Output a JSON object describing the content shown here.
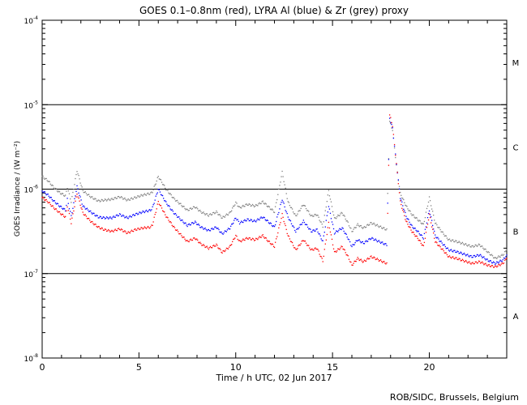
{
  "chart_data": {
    "type": "scatter",
    "title": "GOES 0.1–0.8nm (red), LYRA Al (blue) & Zr (grey) proxy",
    "xlabel": "Time / h UTC, 02 Jun 2017",
    "ylabel": "GOES Irradiance / (W m⁻²)",
    "xlim": [
      0,
      24
    ],
    "ylim_log10": [
      -8,
      -4
    ],
    "y_scale": "log",
    "x_ticks": [
      0,
      5,
      10,
      15,
      20
    ],
    "x_tick_labels": [
      "0",
      "5",
      "10",
      "15",
      "20"
    ],
    "y_tick_labels": [
      {
        "base": "10",
        "exp": "-8",
        "log10": -8
      },
      {
        "base": "10",
        "exp": "-7",
        "log10": -7
      },
      {
        "base": "10",
        "exp": "-6",
        "log10": -6
      },
      {
        "base": "10",
        "exp": "-5",
        "log10": -5
      },
      {
        "base": "10",
        "exp": "-4",
        "log10": -4
      }
    ],
    "class_lines_log10": [
      -7,
      -6,
      -5
    ],
    "class_labels": [
      {
        "label": "A",
        "log10": -7.5
      },
      {
        "label": "B",
        "log10": -6.5
      },
      {
        "label": "C",
        "log10": -5.5
      },
      {
        "label": "M",
        "log10": -4.5
      }
    ],
    "series": [
      {
        "name": "GOES 0.1-0.8nm",
        "color": "#ff0000",
        "points": [
          [
            0.0,
            -6.1
          ],
          [
            0.3,
            -6.15
          ],
          [
            0.6,
            -6.22
          ],
          [
            0.9,
            -6.28
          ],
          [
            1.2,
            -6.33
          ],
          [
            1.3,
            -6.2
          ],
          [
            1.5,
            -6.4
          ],
          [
            1.8,
            -6.05
          ],
          [
            2.1,
            -6.28
          ],
          [
            2.5,
            -6.38
          ],
          [
            2.9,
            -6.45
          ],
          [
            3.2,
            -6.48
          ],
          [
            3.6,
            -6.5
          ],
          [
            4.0,
            -6.47
          ],
          [
            4.4,
            -6.52
          ],
          [
            4.8,
            -6.48
          ],
          [
            5.2,
            -6.46
          ],
          [
            5.6,
            -6.45
          ],
          [
            5.7,
            -6.42
          ],
          [
            6.0,
            -6.15
          ],
          [
            6.4,
            -6.32
          ],
          [
            6.8,
            -6.45
          ],
          [
            7.2,
            -6.55
          ],
          [
            7.5,
            -6.62
          ],
          [
            7.9,
            -6.58
          ],
          [
            8.2,
            -6.65
          ],
          [
            8.6,
            -6.7
          ],
          [
            9.0,
            -6.66
          ],
          [
            9.3,
            -6.75
          ],
          [
            9.7,
            -6.68
          ],
          [
            10.0,
            -6.55
          ],
          [
            10.2,
            -6.62
          ],
          [
            10.6,
            -6.58
          ],
          [
            11.0,
            -6.6
          ],
          [
            11.4,
            -6.55
          ],
          [
            11.7,
            -6.62
          ],
          [
            12.0,
            -6.68
          ],
          [
            12.4,
            -6.3
          ],
          [
            12.7,
            -6.55
          ],
          [
            13.1,
            -6.72
          ],
          [
            13.5,
            -6.6
          ],
          [
            13.9,
            -6.72
          ],
          [
            14.2,
            -6.7
          ],
          [
            14.5,
            -6.85
          ],
          [
            14.8,
            -6.4
          ],
          [
            15.1,
            -6.75
          ],
          [
            15.5,
            -6.68
          ],
          [
            15.8,
            -6.8
          ],
          [
            16.0,
            -6.9
          ],
          [
            16.3,
            -6.82
          ],
          [
            16.6,
            -6.86
          ],
          [
            17.0,
            -6.8
          ],
          [
            17.4,
            -6.84
          ],
          [
            17.8,
            -6.88
          ],
          [
            17.95,
            -5.12
          ],
          [
            18.1,
            -5.25
          ],
          [
            18.3,
            -5.7
          ],
          [
            18.5,
            -6.15
          ],
          [
            18.8,
            -6.38
          ],
          [
            19.1,
            -6.5
          ],
          [
            19.4,
            -6.58
          ],
          [
            19.7,
            -6.68
          ],
          [
            20.0,
            -6.3
          ],
          [
            20.3,
            -6.62
          ],
          [
            20.7,
            -6.72
          ],
          [
            21.0,
            -6.8
          ],
          [
            21.4,
            -6.82
          ],
          [
            21.8,
            -6.85
          ],
          [
            22.2,
            -6.88
          ],
          [
            22.6,
            -6.86
          ],
          [
            23.0,
            -6.9
          ],
          [
            23.4,
            -6.92
          ],
          [
            23.8,
            -6.88
          ],
          [
            24.0,
            -6.82
          ]
        ]
      },
      {
        "name": "LYRA Al proxy",
        "color": "#0000ff",
        "points": [
          [
            0.0,
            -6.02
          ],
          [
            0.3,
            -6.07
          ],
          [
            0.6,
            -6.14
          ],
          [
            0.9,
            -6.2
          ],
          [
            1.2,
            -6.25
          ],
          [
            1.3,
            -6.12
          ],
          [
            1.5,
            -6.32
          ],
          [
            1.8,
            -5.97
          ],
          [
            2.1,
            -6.2
          ],
          [
            2.5,
            -6.27
          ],
          [
            2.9,
            -6.33
          ],
          [
            3.2,
            -6.34
          ],
          [
            3.6,
            -6.34
          ],
          [
            4.0,
            -6.3
          ],
          [
            4.4,
            -6.34
          ],
          [
            4.8,
            -6.3
          ],
          [
            5.2,
            -6.27
          ],
          [
            5.6,
            -6.25
          ],
          [
            5.7,
            -6.22
          ],
          [
            6.0,
            -6.0
          ],
          [
            6.4,
            -6.16
          ],
          [
            6.8,
            -6.28
          ],
          [
            7.2,
            -6.37
          ],
          [
            7.5,
            -6.43
          ],
          [
            7.9,
            -6.39
          ],
          [
            8.2,
            -6.45
          ],
          [
            8.6,
            -6.49
          ],
          [
            9.0,
            -6.45
          ],
          [
            9.3,
            -6.53
          ],
          [
            9.7,
            -6.46
          ],
          [
            10.0,
            -6.34
          ],
          [
            10.2,
            -6.4
          ],
          [
            10.6,
            -6.36
          ],
          [
            11.0,
            -6.38
          ],
          [
            11.4,
            -6.33
          ],
          [
            11.7,
            -6.39
          ],
          [
            12.0,
            -6.45
          ],
          [
            12.4,
            -6.12
          ],
          [
            12.7,
            -6.33
          ],
          [
            13.1,
            -6.5
          ],
          [
            13.5,
            -6.38
          ],
          [
            13.9,
            -6.5
          ],
          [
            14.2,
            -6.48
          ],
          [
            14.5,
            -6.62
          ],
          [
            14.8,
            -6.2
          ],
          [
            15.1,
            -6.52
          ],
          [
            15.5,
            -6.46
          ],
          [
            15.8,
            -6.58
          ],
          [
            16.0,
            -6.68
          ],
          [
            16.3,
            -6.6
          ],
          [
            16.6,
            -6.64
          ],
          [
            17.0,
            -6.58
          ],
          [
            17.4,
            -6.62
          ],
          [
            17.8,
            -6.66
          ],
          [
            17.95,
            -5.16
          ],
          [
            18.1,
            -5.28
          ],
          [
            18.3,
            -5.7
          ],
          [
            18.5,
            -6.1
          ],
          [
            18.8,
            -6.32
          ],
          [
            19.1,
            -6.44
          ],
          [
            19.4,
            -6.5
          ],
          [
            19.7,
            -6.58
          ],
          [
            20.0,
            -6.25
          ],
          [
            20.3,
            -6.55
          ],
          [
            20.7,
            -6.65
          ],
          [
            21.0,
            -6.72
          ],
          [
            21.4,
            -6.74
          ],
          [
            21.8,
            -6.77
          ],
          [
            22.2,
            -6.8
          ],
          [
            22.6,
            -6.78
          ],
          [
            23.0,
            -6.84
          ],
          [
            23.4,
            -6.88
          ],
          [
            23.8,
            -6.84
          ],
          [
            24.0,
            -6.78
          ]
        ]
      },
      {
        "name": "LYRA Zr proxy",
        "color": "#808080",
        "points": [
          [
            0.0,
            -5.85
          ],
          [
            0.3,
            -5.9
          ],
          [
            0.6,
            -5.98
          ],
          [
            0.9,
            -6.04
          ],
          [
            1.2,
            -6.08
          ],
          [
            1.3,
            -5.98
          ],
          [
            1.5,
            -6.15
          ],
          [
            1.8,
            -5.78
          ],
          [
            2.1,
            -6.02
          ],
          [
            2.5,
            -6.09
          ],
          [
            2.9,
            -6.14
          ],
          [
            3.2,
            -6.13
          ],
          [
            3.6,
            -6.12
          ],
          [
            4.0,
            -6.09
          ],
          [
            4.4,
            -6.13
          ],
          [
            4.8,
            -6.1
          ],
          [
            5.2,
            -6.07
          ],
          [
            5.6,
            -6.05
          ],
          [
            5.7,
            -6.03
          ],
          [
            6.0,
            -5.85
          ],
          [
            6.4,
            -6.0
          ],
          [
            6.8,
            -6.11
          ],
          [
            7.2,
            -6.19
          ],
          [
            7.5,
            -6.25
          ],
          [
            7.9,
            -6.21
          ],
          [
            8.2,
            -6.27
          ],
          [
            8.6,
            -6.31
          ],
          [
            9.0,
            -6.27
          ],
          [
            9.3,
            -6.34
          ],
          [
            9.7,
            -6.28
          ],
          [
            10.0,
            -6.16
          ],
          [
            10.2,
            -6.22
          ],
          [
            10.6,
            -6.18
          ],
          [
            11.0,
            -6.2
          ],
          [
            11.4,
            -6.15
          ],
          [
            11.7,
            -6.21
          ],
          [
            12.0,
            -6.27
          ],
          [
            12.4,
            -5.8
          ],
          [
            12.7,
            -6.15
          ],
          [
            13.1,
            -6.32
          ],
          [
            13.5,
            -6.18
          ],
          [
            13.9,
            -6.32
          ],
          [
            14.2,
            -6.3
          ],
          [
            14.5,
            -6.44
          ],
          [
            14.8,
            -6.02
          ],
          [
            15.1,
            -6.35
          ],
          [
            15.5,
            -6.28
          ],
          [
            15.8,
            -6.4
          ],
          [
            16.0,
            -6.5
          ],
          [
            16.3,
            -6.42
          ],
          [
            16.6,
            -6.46
          ],
          [
            17.0,
            -6.4
          ],
          [
            17.4,
            -6.44
          ],
          [
            17.8,
            -6.48
          ],
          [
            17.95,
            -5.2
          ],
          [
            18.1,
            -5.3
          ],
          [
            18.3,
            -5.72
          ],
          [
            18.5,
            -6.05
          ],
          [
            18.8,
            -6.2
          ],
          [
            19.1,
            -6.3
          ],
          [
            19.4,
            -6.36
          ],
          [
            19.7,
            -6.42
          ],
          [
            20.0,
            -6.1
          ],
          [
            20.3,
            -6.4
          ],
          [
            20.7,
            -6.52
          ],
          [
            21.0,
            -6.6
          ],
          [
            21.4,
            -6.62
          ],
          [
            21.8,
            -6.65
          ],
          [
            22.2,
            -6.68
          ],
          [
            22.6,
            -6.66
          ],
          [
            23.0,
            -6.74
          ],
          [
            23.4,
            -6.82
          ],
          [
            23.8,
            -6.78
          ],
          [
            24.0,
            -6.72
          ]
        ]
      }
    ]
  },
  "footer": {
    "credit": "ROB/SIDC, Brussels, Belgium"
  }
}
